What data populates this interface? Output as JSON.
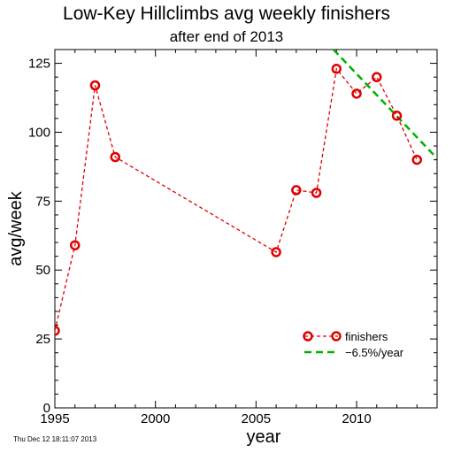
{
  "chart_data": {
    "type": "line",
    "title": "Low-Key Hillclimbs avg weekly finishers",
    "subtitle": "after end of 2013",
    "xlabel": "year",
    "ylabel": "avg/week",
    "xlim": [
      1995,
      2014
    ],
    "ylim": [
      0,
      130
    ],
    "xticks": [
      1995,
      2000,
      2005,
      2010
    ],
    "yticks": [
      0,
      25,
      50,
      75,
      100,
      125
    ],
    "grid": false,
    "legend_position": "bottom-right",
    "series": [
      {
        "name": "finishers",
        "color": "#e00000",
        "style": "dashed-with-circle-markers",
        "points": [
          {
            "x": 1995,
            "y": 28
          },
          {
            "x": 1996,
            "y": 59
          },
          {
            "x": 1997,
            "y": 117
          },
          {
            "x": 1998,
            "y": 91
          },
          {
            "x": 2006,
            "y": 56.5
          },
          {
            "x": 2007,
            "y": 79
          },
          {
            "x": 2008,
            "y": 78
          },
          {
            "x": 2009,
            "y": 123
          },
          {
            "x": 2010,
            "y": 114
          },
          {
            "x": 2011,
            "y": 120
          },
          {
            "x": 2012,
            "y": 106
          },
          {
            "x": 2013,
            "y": 90
          }
        ]
      },
      {
        "name": "−6.5%/year",
        "color": "#00b000",
        "style": "dashed-fit",
        "points": [
          {
            "x": 2008.85,
            "y": 130
          },
          {
            "x": 2014,
            "y": 90.5
          }
        ]
      }
    ]
  },
  "timestamp": "Thu Dec 12 18:11:07 2013"
}
